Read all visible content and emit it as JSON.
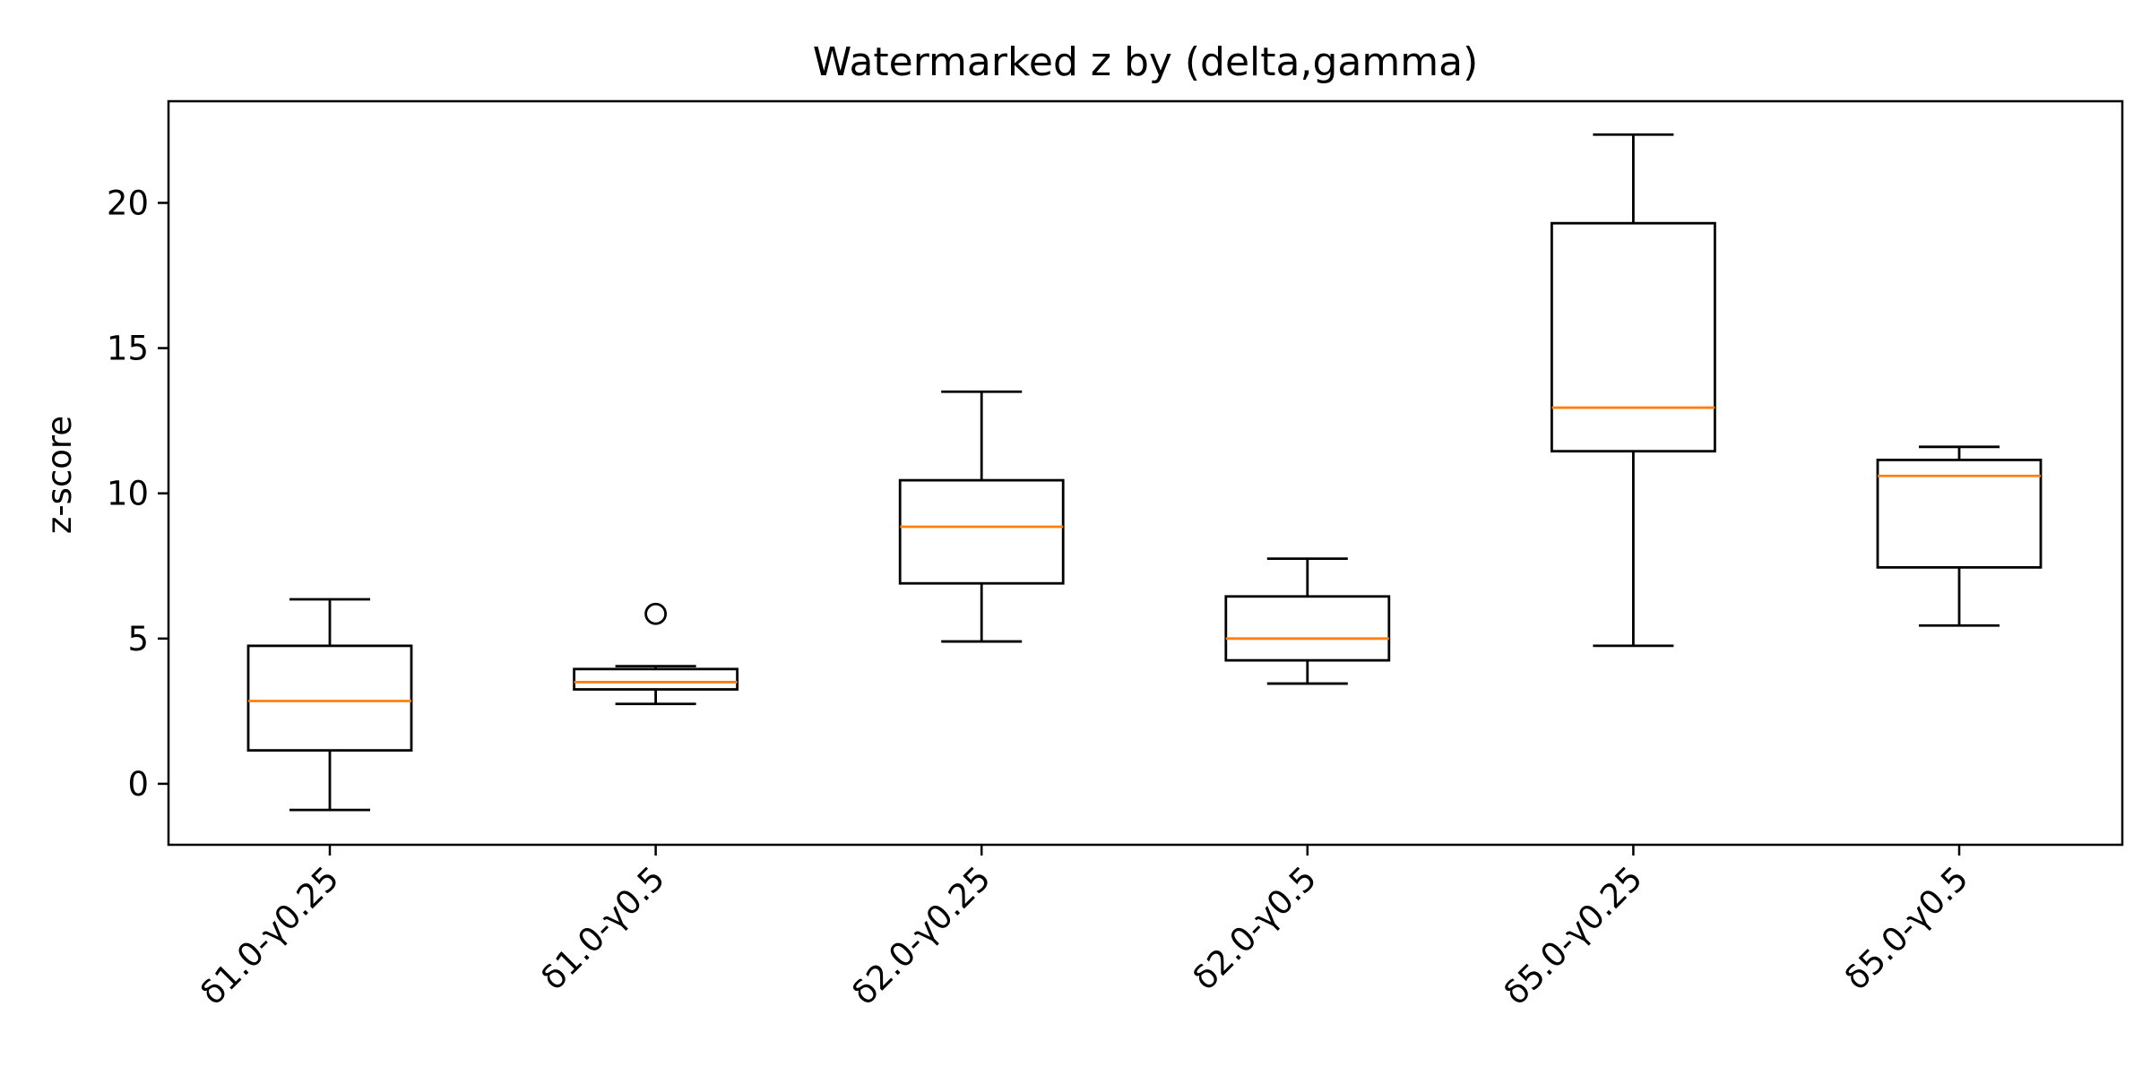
{
  "chart_data": {
    "type": "boxplot",
    "title": "Watermarked z by (delta,gamma)",
    "xlabel": "",
    "ylabel": "z-score",
    "ylim": [
      -2.1,
      23.5
    ],
    "yticks": [
      0,
      5,
      10,
      15,
      20
    ],
    "grid": false,
    "categories": [
      "δ1.0-γ0.25",
      "δ1.0-γ0.5",
      "δ2.0-γ0.25",
      "δ2.0-γ0.5",
      "δ5.0-γ0.25",
      "δ5.0-γ0.5"
    ],
    "boxes": [
      {
        "category": "δ1.0-γ0.25",
        "whisker_low": -0.9,
        "q1": 1.15,
        "median": 2.85,
        "q3": 4.75,
        "whisker_high": 6.35,
        "outliers": []
      },
      {
        "category": "δ1.0-γ0.5",
        "whisker_low": 2.75,
        "q1": 3.25,
        "median": 3.5,
        "q3": 3.95,
        "whisker_high": 4.05,
        "outliers": [
          5.85
        ]
      },
      {
        "category": "δ2.0-γ0.25",
        "whisker_low": 4.9,
        "q1": 6.9,
        "median": 8.85,
        "q3": 10.45,
        "whisker_high": 13.5,
        "outliers": []
      },
      {
        "category": "δ2.0-γ0.5",
        "whisker_low": 3.45,
        "q1": 4.25,
        "median": 5.0,
        "q3": 6.45,
        "whisker_high": 7.75,
        "outliers": []
      },
      {
        "category": "δ5.0-γ0.25",
        "whisker_low": 4.75,
        "q1": 11.45,
        "median": 12.95,
        "q3": 19.3,
        "whisker_high": 22.35,
        "outliers": []
      },
      {
        "category": "δ5.0-γ0.5",
        "whisker_low": 5.45,
        "q1": 7.45,
        "median": 10.6,
        "q3": 11.15,
        "whisker_high": 11.6,
        "outliers": []
      }
    ],
    "colors": {
      "box": "#000000",
      "median": "#ff7f0e",
      "background": "#ffffff"
    }
  }
}
